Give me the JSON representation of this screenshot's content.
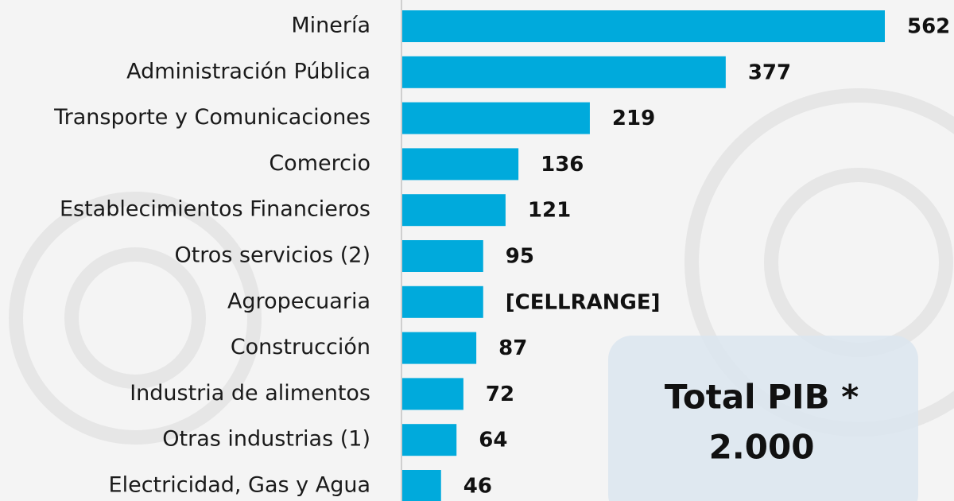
{
  "chart_data": {
    "type": "bar",
    "orientation": "horizontal",
    "categories": [
      "Minería",
      "Administración Pública",
      "Transporte y Comunicaciones",
      "Comercio",
      "Establecimientos Financieros",
      "Otros servicios (2)",
      "Agropecuaria",
      "Construcción",
      "Industria de alimentos",
      "Otras industrias (1)",
      "Electricidad, Gas y Agua"
    ],
    "values": [
      562,
      377,
      219,
      136,
      121,
      95,
      95,
      87,
      72,
      64,
      46
    ],
    "value_labels": [
      null,
      null,
      null,
      null,
      null,
      null,
      "[CELLRANGE]",
      null,
      null,
      null,
      null
    ],
    "color": "#00aadc",
    "annotations": [
      "Total PIB *",
      "2.000"
    ]
  }
}
